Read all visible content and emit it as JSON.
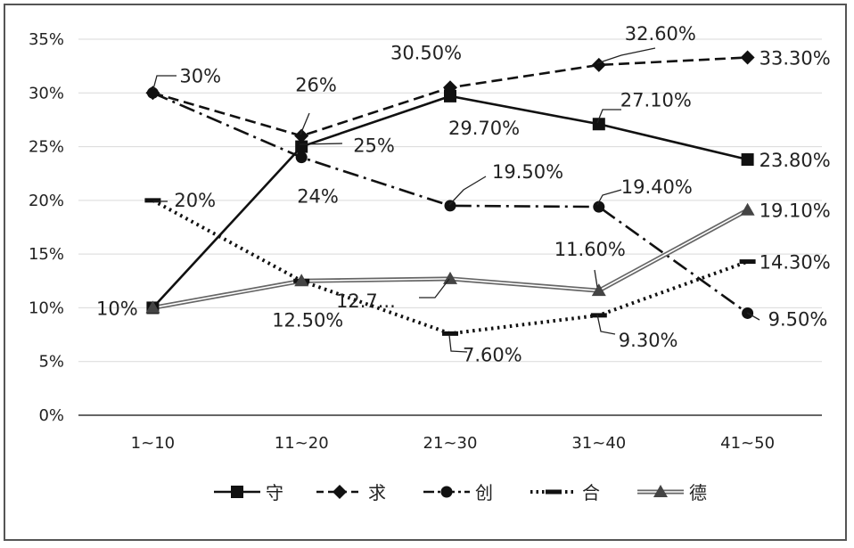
{
  "chart_data": {
    "type": "line",
    "categories": [
      "1~10",
      "11~20",
      "21~30",
      "31~40",
      "41~50"
    ],
    "ylim": [
      0,
      35
    ],
    "y_ticks": [
      "0%",
      "5%",
      "10%",
      "15%",
      "20%",
      "25%",
      "30%",
      "35%"
    ],
    "grid": true,
    "legend_position": "bottom",
    "series": [
      {
        "name": "守",
        "values": [
          10,
          25,
          29.7,
          27.1,
          23.8
        ],
        "labels": [
          "10%",
          "25%",
          "29.70%",
          "27.10%",
          "23.80%"
        ],
        "color": "#111111",
        "style": "solid",
        "marker": "square"
      },
      {
        "name": "求",
        "values": [
          30,
          26,
          30.5,
          32.6,
          33.3
        ],
        "labels": [
          "30%",
          "26%",
          "30.50%",
          "32.60%",
          "33.30%"
        ],
        "color": "#111111",
        "style": "dashed",
        "marker": "diamond"
      },
      {
        "name": "创",
        "values": [
          30,
          24,
          19.5,
          19.4,
          9.5
        ],
        "labels": [
          "",
          "24%",
          "19.50%",
          "19.40%",
          "9.50%"
        ],
        "color": "#111111",
        "style": "dashdot",
        "marker": "circle"
      },
      {
        "name": "合",
        "values": [
          20,
          12.5,
          7.6,
          9.3,
          14.3
        ],
        "labels": [
          "20%",
          "12.50%",
          "7.60%",
          "9.30%",
          "14.30%"
        ],
        "color": "#111111",
        "style": "dotted",
        "marker": "dash"
      },
      {
        "name": "德",
        "values": [
          10,
          12.5,
          12.7,
          11.6,
          19.1
        ],
        "labels": [
          "",
          "",
          "12.7...",
          "11.60%",
          "19.10%"
        ],
        "color": "#777777",
        "style": "double",
        "marker": "triangle"
      }
    ]
  }
}
